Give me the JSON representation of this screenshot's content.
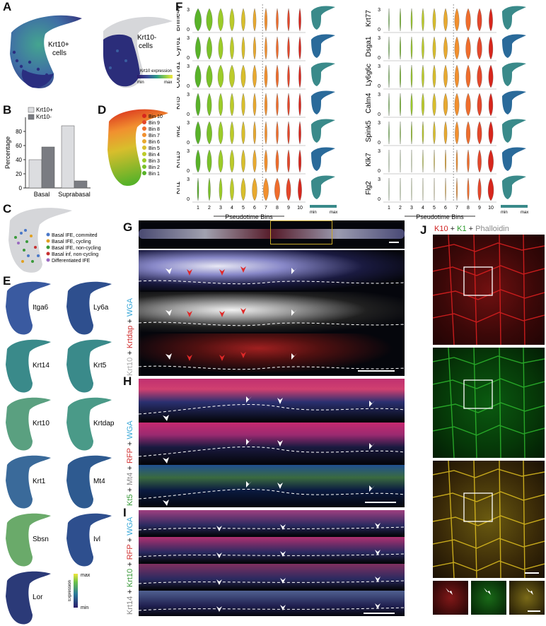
{
  "panels": {
    "A": {
      "letter": "A",
      "label_pos": "Krt10+\ncells",
      "label_neg": "Krt10-\ncells",
      "label_pos_l1": "Krt10+",
      "label_pos_l2": "cells",
      "label_neg_l1": "Krt10-",
      "label_neg_l2": "cells",
      "colorbar_title": "Krt10 expression",
      "min": "min",
      "max": "max"
    },
    "B": {
      "letter": "B"
    },
    "C": {
      "letter": "C",
      "legend": [
        {
          "label": "Basal IFE, commited",
          "color": "#4a78c8"
        },
        {
          "label": "Basal IFE, cycling",
          "color": "#e0a020"
        },
        {
          "label": "Basal IFE, non-cycling",
          "color": "#3a9a3a"
        },
        {
          "label": "Basal inf, non-cycling",
          "color": "#c83030"
        },
        {
          "label": "Differentiated IFE",
          "color": "#9a6ac0"
        }
      ]
    },
    "D": {
      "letter": "D",
      "bins": [
        {
          "label": "Bin 10",
          "color": "#d7261c"
        },
        {
          "label": "Bin 9",
          "color": "#e4472a"
        },
        {
          "label": "Bin 8",
          "color": "#ef6d2c"
        },
        {
          "label": "Bin 7",
          "color": "#f1902f"
        },
        {
          "label": "Bin 6",
          "color": "#e8a92f"
        },
        {
          "label": "Bin 5",
          "color": "#d8be2c"
        },
        {
          "label": "Bin 4",
          "color": "#bccb2a"
        },
        {
          "label": "Bin 3",
          "color": "#9ccc28"
        },
        {
          "label": "Bin 2",
          "color": "#79c128"
        },
        {
          "label": "Bin 1",
          "color": "#58b229"
        }
      ]
    },
    "E": {
      "letter": "E",
      "genes": [
        "Itga6",
        "Ly6a",
        "Krt14",
        "Krt5",
        "Krt10",
        "Krtdap",
        "Krt1",
        "Mt4",
        "Sbsn",
        "Ivl",
        "Lor"
      ],
      "colorbar_title": "Expression",
      "max": "max",
      "min": "min"
    },
    "F": {
      "letter": "F",
      "left_genes": [
        "Bhlhe40",
        "Cyr61",
        "Col17a1",
        "Krt5",
        "Mt2",
        "Krt15",
        "Krt1"
      ],
      "right_genes": [
        "Krt77",
        "Dsga1",
        "Ly6g6c",
        "Calm4",
        "Spink5",
        "Klk7",
        "Flg2"
      ],
      "bins": [
        "1",
        "2",
        "3",
        "4",
        "5",
        "6",
        "7",
        "8",
        "9",
        "10"
      ],
      "xlabel": "Pseudotime Bins",
      "yticks": [
        "3",
        "0"
      ],
      "min": "min",
      "max": "max"
    },
    "G": {
      "letter": "G",
      "channel_label": "Krt10 + Krtdap + WGA",
      "ch1": "Krt10",
      "ch2": "Krtdap",
      "ch3": "WGA",
      "plus": "+"
    },
    "H": {
      "letter": "H",
      "ch1": "Kt5",
      "ch2": "Mt4",
      "ch3": "RFP",
      "ch4": "WGA",
      "plus": "+"
    },
    "I": {
      "letter": "I",
      "ch1": "Krt14",
      "ch2": "Krt10",
      "ch3": "RFP",
      "ch4": "WGA",
      "plus": "+"
    },
    "J": {
      "letter": "J",
      "ch1": "K10",
      "ch2": "K1",
      "ch3": "Phalloidin",
      "plus": "+"
    }
  },
  "chart_data": [
    {
      "type": "bar",
      "panel": "B",
      "categories": [
        "Basal",
        "Suprabasal"
      ],
      "series": [
        {
          "name": "Krt10+",
          "values": [
            40,
            88
          ],
          "color": "#dcdde0"
        },
        {
          "name": "Krt10-",
          "values": [
            58,
            10
          ],
          "color": "#7a7c82"
        }
      ],
      "xlabel": "",
      "ylabel": "Percentage",
      "ylim": [
        0,
        100
      ],
      "yticks": [
        "0",
        "20",
        "40",
        "60",
        "80"
      ],
      "legend_position": "top-left"
    }
  ]
}
